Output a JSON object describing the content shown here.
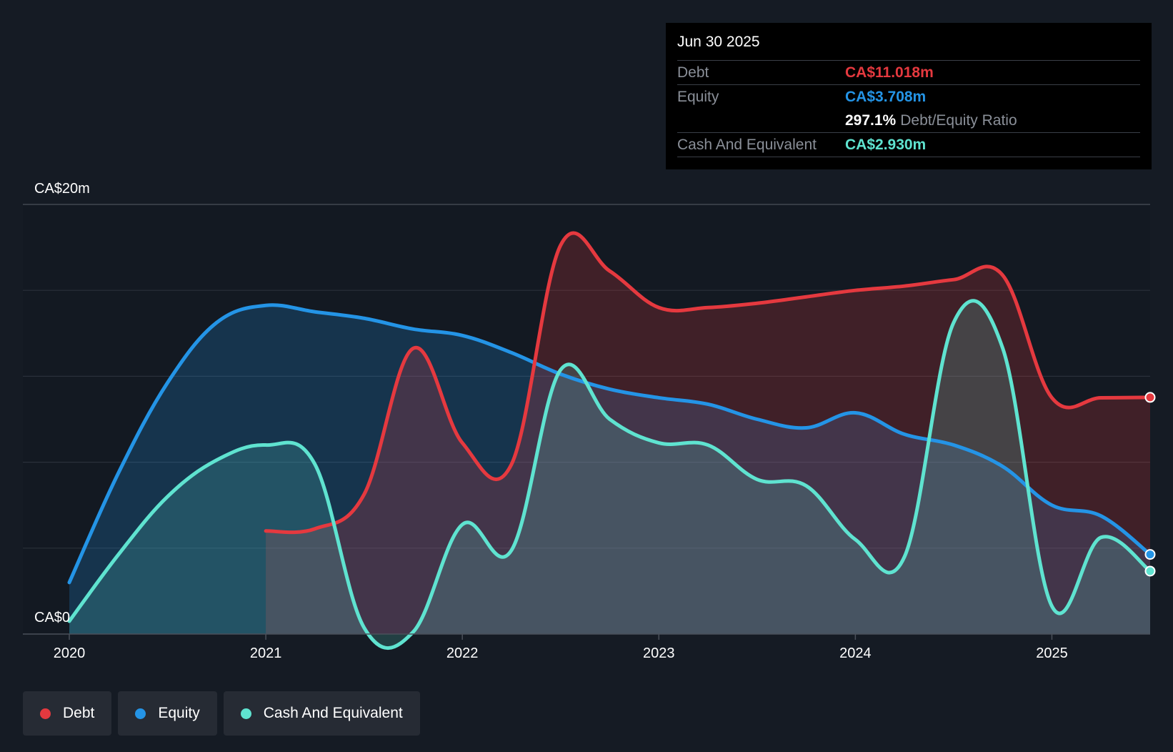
{
  "tooltip": {
    "date": "Jun 30 2025",
    "debt_label": "Debt",
    "debt_value": "CA$11.018m",
    "equity_label": "Equity",
    "equity_value": "CA$3.708m",
    "ratio_value": "297.1%",
    "ratio_label": "Debt/Equity Ratio",
    "cash_label": "Cash And Equivalent",
    "cash_value": "CA$2.930m"
  },
  "legend": [
    {
      "label": "Debt",
      "color": "#e5393f"
    },
    {
      "label": "Equity",
      "color": "#2494e6"
    },
    {
      "label": "Cash And Equivalent",
      "color": "#5fe3d0"
    }
  ],
  "chart_data": {
    "type": "area",
    "y_top_label": "CA$20m",
    "y_bottom_label": "CA$0",
    "ylim": [
      0,
      20
    ],
    "xlim": [
      2020.0,
      2025.5
    ],
    "x_ticks": [
      {
        "value": 2020,
        "label": "2020"
      },
      {
        "value": 2021,
        "label": "2021"
      },
      {
        "value": 2022,
        "label": "2022"
      },
      {
        "value": 2023,
        "label": "2023"
      },
      {
        "value": 2024,
        "label": "2024"
      },
      {
        "value": 2025,
        "label": "2025"
      }
    ],
    "grid": true,
    "legend_position": "bottom-left",
    "series": [
      {
        "name": "Equity",
        "color": "#2494e6",
        "points": [
          [
            2020.0,
            2.4
          ],
          [
            2020.25,
            7.5
          ],
          [
            2020.5,
            11.7
          ],
          [
            2020.75,
            14.5
          ],
          [
            2021.0,
            15.3
          ],
          [
            2021.25,
            15.0
          ],
          [
            2021.5,
            14.7
          ],
          [
            2021.75,
            14.2
          ],
          [
            2022.0,
            13.9
          ],
          [
            2022.25,
            13.1
          ],
          [
            2022.5,
            12.1
          ],
          [
            2022.75,
            11.4
          ],
          [
            2023.0,
            11.0
          ],
          [
            2023.25,
            10.7
          ],
          [
            2023.5,
            10.0
          ],
          [
            2023.75,
            9.6
          ],
          [
            2024.0,
            10.3
          ],
          [
            2024.25,
            9.3
          ],
          [
            2024.5,
            8.8
          ],
          [
            2024.75,
            7.8
          ],
          [
            2025.0,
            6.0
          ],
          [
            2025.25,
            5.5
          ],
          [
            2025.5,
            3.708
          ]
        ]
      },
      {
        "name": "Debt",
        "color": "#e5393f",
        "points": [
          [
            2021.0,
            4.8
          ],
          [
            2021.25,
            4.9
          ],
          [
            2021.5,
            6.5
          ],
          [
            2021.75,
            13.3
          ],
          [
            2022.0,
            8.9
          ],
          [
            2022.25,
            7.9
          ],
          [
            2022.5,
            18.1
          ],
          [
            2022.75,
            16.9
          ],
          [
            2023.0,
            15.2
          ],
          [
            2023.25,
            15.2
          ],
          [
            2023.5,
            15.4
          ],
          [
            2023.75,
            15.7
          ],
          [
            2024.0,
            16.0
          ],
          [
            2024.25,
            16.2
          ],
          [
            2024.5,
            16.5
          ],
          [
            2024.75,
            16.7
          ],
          [
            2025.0,
            11.0
          ],
          [
            2025.25,
            11.0
          ],
          [
            2025.5,
            11.018
          ]
        ]
      },
      {
        "name": "Cash And Equivalent",
        "color": "#5fe3d0",
        "points": [
          [
            2020.0,
            0.6
          ],
          [
            2020.25,
            3.7
          ],
          [
            2020.5,
            6.4
          ],
          [
            2020.75,
            8.1
          ],
          [
            2021.0,
            8.8
          ],
          [
            2021.25,
            7.9
          ],
          [
            2021.5,
            0.3
          ],
          [
            2021.75,
            0.1
          ],
          [
            2022.0,
            5.1
          ],
          [
            2022.25,
            3.9
          ],
          [
            2022.5,
            12.3
          ],
          [
            2022.75,
            10.0
          ],
          [
            2023.0,
            8.9
          ],
          [
            2023.25,
            8.8
          ],
          [
            2023.5,
            7.2
          ],
          [
            2023.75,
            6.9
          ],
          [
            2024.0,
            4.4
          ],
          [
            2024.25,
            3.6
          ],
          [
            2024.5,
            14.5
          ],
          [
            2024.75,
            13.3
          ],
          [
            2025.0,
            1.3
          ],
          [
            2025.25,
            4.5
          ],
          [
            2025.5,
            2.93
          ]
        ]
      }
    ]
  }
}
